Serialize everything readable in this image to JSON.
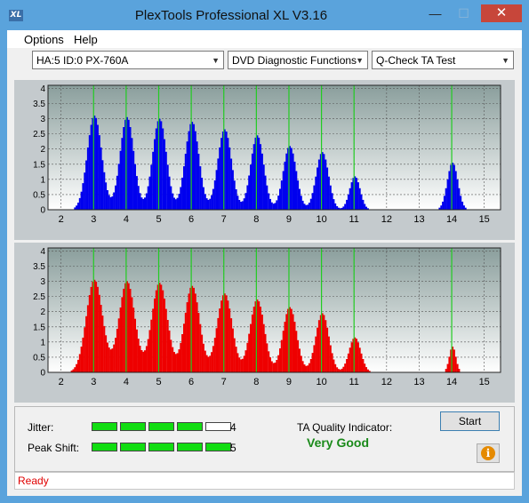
{
  "window": {
    "title": "PlexTools Professional XL V3.16",
    "icon_text": "XL"
  },
  "menu": {
    "options": "Options",
    "help": "Help"
  },
  "toolbar": {
    "drive": "HA:5 ID:0  PX-760A",
    "function": "DVD Diagnostic Functions",
    "test": "Q-Check TA Test"
  },
  "results": {
    "jitter_label": "Jitter:",
    "jitter_value": "4",
    "jitter_level": 4,
    "peak_label": "Peak Shift:",
    "peak_value": "5",
    "peak_level": 5,
    "meter_segments": 5,
    "ta_label": "TA Quality Indicator:",
    "ta_rating": "Very Good"
  },
  "buttons": {
    "start": "Start",
    "info_icon": "info-icon"
  },
  "status": {
    "text": "Ready"
  },
  "colors": {
    "blue": "#0000ee",
    "red": "#ee0000",
    "green_line": "#22cc22",
    "meter_on": "#11dd11"
  },
  "chart_data": [
    {
      "type": "bar",
      "series_color": "#0000ee",
      "x_ticks": [
        2,
        3,
        4,
        5,
        6,
        7,
        8,
        9,
        10,
        11,
        12,
        13,
        14,
        15
      ],
      "y_ticks": [
        "0",
        "0.5",
        "1",
        "1.5",
        "2",
        "2.5",
        "3",
        "3.5",
        "4"
      ],
      "xlim": [
        1.6,
        15.5
      ],
      "ylim": [
        0,
        4.1
      ],
      "green_lines": [
        3,
        4,
        5,
        6,
        7,
        8,
        9,
        10,
        11,
        14
      ],
      "peaks": [
        {
          "x": 3.0,
          "height": 3.1,
          "sigma": 0.22
        },
        {
          "x": 4.0,
          "height": 3.05,
          "sigma": 0.21
        },
        {
          "x": 5.0,
          "height": 3.0,
          "sigma": 0.21
        },
        {
          "x": 6.0,
          "height": 2.9,
          "sigma": 0.21
        },
        {
          "x": 7.0,
          "height": 2.65,
          "sigma": 0.21
        },
        {
          "x": 8.0,
          "height": 2.45,
          "sigma": 0.2
        },
        {
          "x": 9.0,
          "height": 2.1,
          "sigma": 0.2
        },
        {
          "x": 10.0,
          "height": 1.9,
          "sigma": 0.19
        },
        {
          "x": 11.0,
          "height": 1.1,
          "sigma": 0.16
        },
        {
          "x": 14.0,
          "height": 1.55,
          "sigma": 0.16
        }
      ],
      "grid": true
    },
    {
      "type": "bar",
      "series_color": "#ee0000",
      "x_ticks": [
        2,
        3,
        4,
        5,
        6,
        7,
        8,
        9,
        10,
        11,
        12,
        13,
        14,
        15
      ],
      "y_ticks": [
        "0",
        "0.5",
        "1",
        "1.5",
        "2",
        "2.5",
        "3",
        "3.5",
        "4"
      ],
      "xlim": [
        1.6,
        15.5
      ],
      "ylim": [
        0,
        4.1
      ],
      "green_lines": [
        3,
        4,
        5,
        6,
        7,
        8,
        9,
        10,
        11,
        14
      ],
      "peaks": [
        {
          "x": 3.0,
          "height": 3.05,
          "sigma": 0.25
        },
        {
          "x": 4.0,
          "height": 3.0,
          "sigma": 0.24
        },
        {
          "x": 5.0,
          "height": 2.95,
          "sigma": 0.24
        },
        {
          "x": 6.0,
          "height": 2.85,
          "sigma": 0.23
        },
        {
          "x": 7.0,
          "height": 2.6,
          "sigma": 0.23
        },
        {
          "x": 8.0,
          "height": 2.4,
          "sigma": 0.22
        },
        {
          "x": 9.0,
          "height": 2.15,
          "sigma": 0.21
        },
        {
          "x": 10.0,
          "height": 1.95,
          "sigma": 0.2
        },
        {
          "x": 11.0,
          "height": 1.15,
          "sigma": 0.18
        },
        {
          "x": 14.0,
          "height": 0.85,
          "sigma": 0.1
        }
      ],
      "grid": true
    }
  ]
}
